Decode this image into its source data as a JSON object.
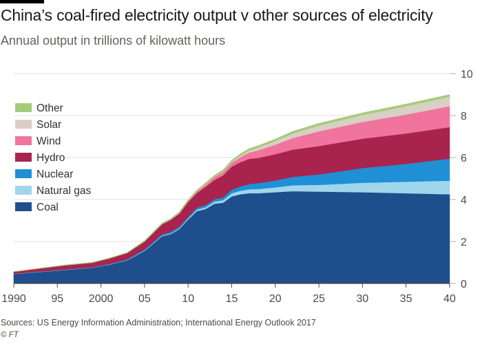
{
  "header": {
    "title": "China’s coal-fired electricity output v other sources of electricity",
    "subtitle": "Annual output in trillions of kilowatt hours"
  },
  "footer": {
    "source": "Sources: US Energy Information Administration; International Energy Outlook 2017",
    "credit": "© FT"
  },
  "chart_data": {
    "type": "area",
    "stacked": true,
    "title": "China’s coal-fired electricity output v other sources of electricity",
    "subtitle": "Annual output in trillions of kilowatt hours",
    "x": [
      1990,
      1993,
      1996,
      1999,
      2001,
      2003,
      2005,
      2007,
      2008,
      2009,
      2010,
      2011,
      2012,
      2013,
      2014,
      2015,
      2016,
      2017,
      2018,
      2020,
      2022,
      2025,
      2030,
      2035,
      2040
    ],
    "x_tick_values": [
      1990,
      1995,
      2000,
      2005,
      2010,
      2015,
      2020,
      2025,
      2030,
      2035,
      2040
    ],
    "x_tick_labels": [
      "1990",
      "95",
      "2000",
      "05",
      "10",
      "15",
      "20",
      "25",
      "30",
      "35",
      "40"
    ],
    "y_ticks": [
      0,
      2,
      4,
      6,
      8,
      10
    ],
    "ylim": [
      0,
      10
    ],
    "xlim": [
      1990,
      2040
    ],
    "axis_side": "right",
    "legend_position": "top-left",
    "legend_order": [
      "Other",
      "Solar",
      "Wind",
      "Hydro",
      "Nuclear",
      "Natural gas",
      "Coal"
    ],
    "series": [
      {
        "name": "Coal",
        "color": "#1f4e8c",
        "values": [
          0.45,
          0.55,
          0.65,
          0.75,
          0.9,
          1.1,
          1.55,
          2.25,
          2.35,
          2.6,
          3.05,
          3.45,
          3.55,
          3.8,
          3.85,
          4.15,
          4.25,
          4.3,
          4.3,
          4.35,
          4.4,
          4.38,
          4.35,
          4.3,
          4.25
        ]
      },
      {
        "name": "Natural gas",
        "color": "#9fd6ec",
        "values": [
          0.01,
          0.01,
          0.01,
          0.01,
          0.01,
          0.01,
          0.02,
          0.03,
          0.03,
          0.04,
          0.05,
          0.07,
          0.08,
          0.1,
          0.12,
          0.15,
          0.17,
          0.19,
          0.2,
          0.23,
          0.28,
          0.32,
          0.45,
          0.55,
          0.65
        ]
      },
      {
        "name": "Nuclear",
        "color": "#1f90d6",
        "values": [
          0.0,
          0.01,
          0.01,
          0.01,
          0.02,
          0.04,
          0.05,
          0.06,
          0.07,
          0.07,
          0.07,
          0.09,
          0.1,
          0.11,
          0.13,
          0.17,
          0.21,
          0.25,
          0.28,
          0.33,
          0.4,
          0.5,
          0.7,
          0.85,
          1.05
        ]
      },
      {
        "name": "Hydro",
        "color": "#a8244e",
        "values": [
          0.1,
          0.15,
          0.2,
          0.22,
          0.27,
          0.3,
          0.38,
          0.48,
          0.58,
          0.62,
          0.72,
          0.7,
          0.88,
          0.92,
          1.05,
          1.1,
          1.15,
          1.2,
          1.2,
          1.25,
          1.3,
          1.35,
          1.4,
          1.45,
          1.5
        ]
      },
      {
        "name": "Wind",
        "color": "#f0749d",
        "values": [
          0.0,
          0.0,
          0.0,
          0.0,
          0.0,
          0.0,
          0.0,
          0.01,
          0.01,
          0.03,
          0.04,
          0.07,
          0.1,
          0.14,
          0.16,
          0.19,
          0.24,
          0.3,
          0.36,
          0.45,
          0.55,
          0.7,
          0.8,
          0.9,
          1.0
        ]
      },
      {
        "name": "Solar",
        "color": "#d9cfc4",
        "values": [
          0.0,
          0.0,
          0.0,
          0.0,
          0.0,
          0.0,
          0.0,
          0.0,
          0.0,
          0.0,
          0.0,
          0.0,
          0.01,
          0.01,
          0.02,
          0.04,
          0.07,
          0.1,
          0.13,
          0.18,
          0.22,
          0.28,
          0.33,
          0.4,
          0.45
        ]
      },
      {
        "name": "Other",
        "color": "#a3cd7a",
        "values": [
          0.01,
          0.01,
          0.02,
          0.02,
          0.02,
          0.03,
          0.04,
          0.05,
          0.05,
          0.06,
          0.06,
          0.07,
          0.07,
          0.07,
          0.08,
          0.08,
          0.09,
          0.09,
          0.09,
          0.09,
          0.1,
          0.1,
          0.1,
          0.1,
          0.1
        ]
      }
    ]
  }
}
